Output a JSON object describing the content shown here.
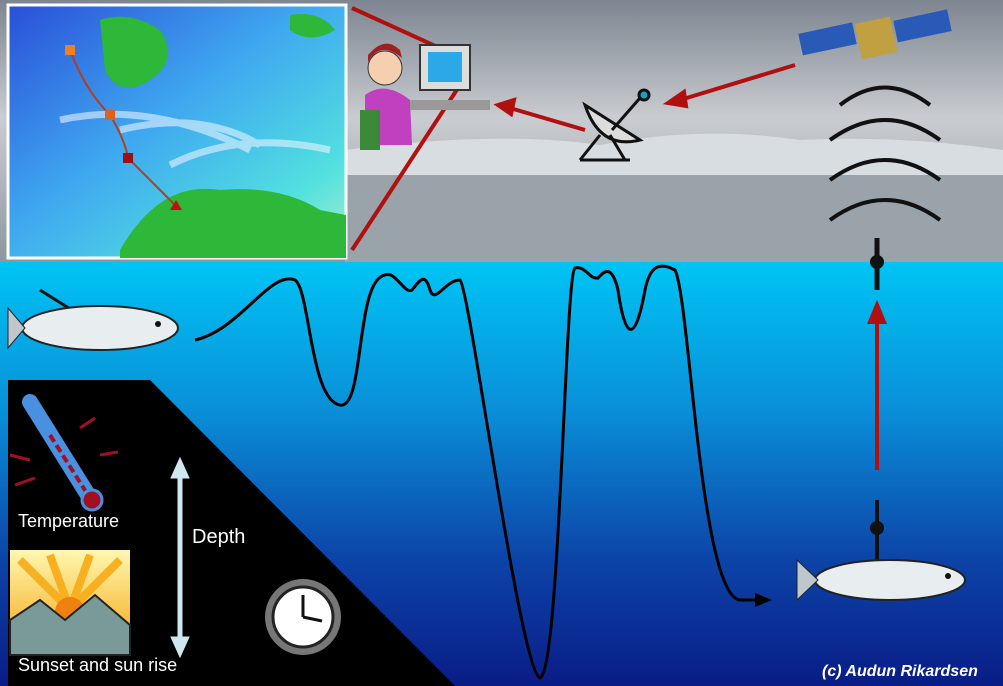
{
  "labels": {
    "temperature": "Temperature",
    "depth": "Depth",
    "sunset": "Sunset and sun rise",
    "credit": "(c) Audun Rikardsen"
  }
}
